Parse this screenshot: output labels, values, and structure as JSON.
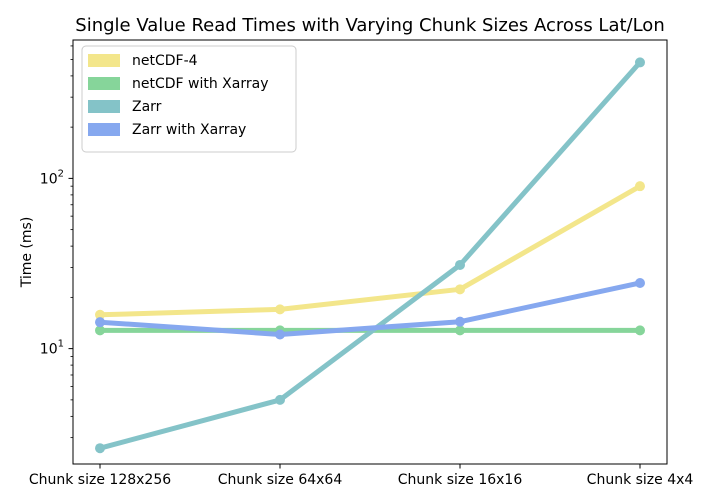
{
  "chart_data": {
    "type": "line",
    "title": "Single Value Read Times with Varying Chunk Sizes Across Lat/Lon",
    "xlabel": "",
    "ylabel": "Time (ms)",
    "yscale": "log",
    "ylim": [
      2.1,
      650
    ],
    "categories": [
      "Chunk size 128x256",
      "Chunk size 64x64",
      "Chunk size 16x16",
      "Chunk size 4x4"
    ],
    "y_ticks": [
      {
        "value": 10,
        "label": "10",
        "sup": "1"
      },
      {
        "value": 100,
        "label": "10",
        "sup": "2"
      }
    ],
    "legend_position": "upper left",
    "grid": false,
    "series": [
      {
        "name": "netCDF-4",
        "color": "#f3e68b",
        "values": [
          15.8,
          17.0,
          22.3,
          90.0
        ]
      },
      {
        "name": "netCDF with Xarray",
        "color": "#86d59a",
        "values": [
          12.8,
          12.8,
          12.8,
          12.8
        ]
      },
      {
        "name": "Zarr",
        "color": "#84c3c8",
        "values": [
          2.6,
          5.0,
          31.0,
          480.0
        ]
      },
      {
        "name": "Zarr with Xarray",
        "color": "#86a8ef",
        "values": [
          14.3,
          12.1,
          14.4,
          24.3
        ]
      }
    ]
  }
}
